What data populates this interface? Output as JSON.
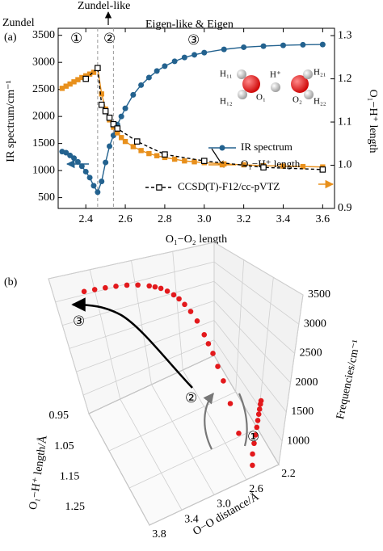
{
  "chart_data": [
    {
      "type": "line",
      "panel_label": "(a)",
      "annotations": [
        "Zundel",
        "Zundel-like",
        "Eigen-like & Eigen",
        "①",
        "②",
        "③"
      ],
      "molecule_labels": [
        "H₁₁",
        "H₁₂",
        "O₁",
        "H⁺",
        "O₂",
        "H₂₁",
        "H₂₂"
      ],
      "xlabel": "O₁−O₂ length",
      "ylabel": "IR spectrum/cm⁻¹",
      "y2label": "O₁−H⁺ length",
      "x": [
        2.28,
        2.3,
        2.32,
        2.34,
        2.36,
        2.38,
        2.4,
        2.42,
        2.44,
        2.46,
        2.48,
        2.5,
        2.52,
        2.54,
        2.56,
        2.58,
        2.6,
        2.64,
        2.68,
        2.72,
        2.76,
        2.8,
        2.85,
        2.9,
        2.95,
        3.0,
        3.1,
        3.2,
        3.3,
        3.4,
        3.5,
        3.6
      ],
      "xlim": [
        2.26,
        3.66
      ],
      "xticks": [
        2.4,
        2.6,
        2.8,
        {
          "value": 3,
          "label": "3.0"
        },
        3.2,
        3.4,
        3.6
      ],
      "ylim": [
        300,
        3630
      ],
      "yticks": [
        500,
        1000,
        1500,
        2000,
        2500,
        3000,
        3500
      ],
      "y2lim": [
        0.9,
        1.317
      ],
      "y2ticks": [
        0.9,
        {
          "value": 1,
          "label": "1.0"
        },
        1.1,
        1.2,
        1.3
      ],
      "vlines": [
        2.46,
        2.54
      ],
      "vline_color": "#9a9a9a",
      "series": [
        {
          "name": "IR spectrum",
          "color": "#23628f",
          "marker": "circle",
          "values": [
            1350,
            1330,
            1280,
            1230,
            1160,
            1080,
            980,
            870,
            720,
            600,
            800,
            1150,
            1450,
            1650,
            1850,
            2000,
            2150,
            2400,
            2580,
            2720,
            2840,
            2930,
            3020,
            3090,
            3140,
            3180,
            3240,
            3280,
            3300,
            3315,
            3325,
            3330
          ]
        },
        {
          "name": "O₁−H⁺ length",
          "color": "#e8901c",
          "marker": "square",
          "axis": "y2",
          "values": [
            1.178,
            1.183,
            1.188,
            1.193,
            1.198,
            1.203,
            1.207,
            1.211,
            1.215,
            1.225,
            1.165,
            1.13,
            1.105,
            1.088,
            1.075,
            1.064,
            1.055,
            1.043,
            1.034,
            1.027,
            1.022,
            1.018,
            1.014,
            1.01,
            1.008,
            1.006,
            1.003,
            1.001,
            0.999,
            0.998,
            0.997,
            0.996
          ]
        },
        {
          "name": "CCSD(T)-F12/cc-pVTZ",
          "color": "#000000",
          "marker": "open-square",
          "linestyle": "dashed",
          "axis": "y2",
          "x": [
            2.4,
            2.46,
            2.48,
            2.5,
            2.52,
            2.54,
            2.56,
            2.66,
            2.8,
            3.0,
            3.3,
            3.6
          ],
          "values": [
            1.2,
            1.225,
            1.14,
            1.125,
            1.11,
            1.095,
            1.085,
            1.055,
            1.025,
            1.01,
            0.995,
            0.99
          ]
        }
      ]
    },
    {
      "type": "scatter3d",
      "panel_label": "(b)",
      "annotations": [
        "③",
        "②",
        "①"
      ],
      "xlabel": "O−O distance/Å",
      "ylabel": "O₁−H⁺ length/Å",
      "zlabel": "Frequencies/cm⁻¹",
      "xlim": [
        2.2,
        3.8
      ],
      "xticks": [
        2.2,
        2.6,
        {
          "value": 3,
          "label": "3.0"
        },
        3.4,
        3.8
      ],
      "ylim": [
        0.95,
        1.25
      ],
      "yticks": [
        0.95,
        1.05,
        1.15,
        1.25
      ],
      "zlim": [
        600,
        3500
      ],
      "zticks": [
        1000,
        1500,
        2000,
        2500,
        3000,
        3500
      ],
      "color": "#e3191c",
      "grid": true
    }
  ]
}
